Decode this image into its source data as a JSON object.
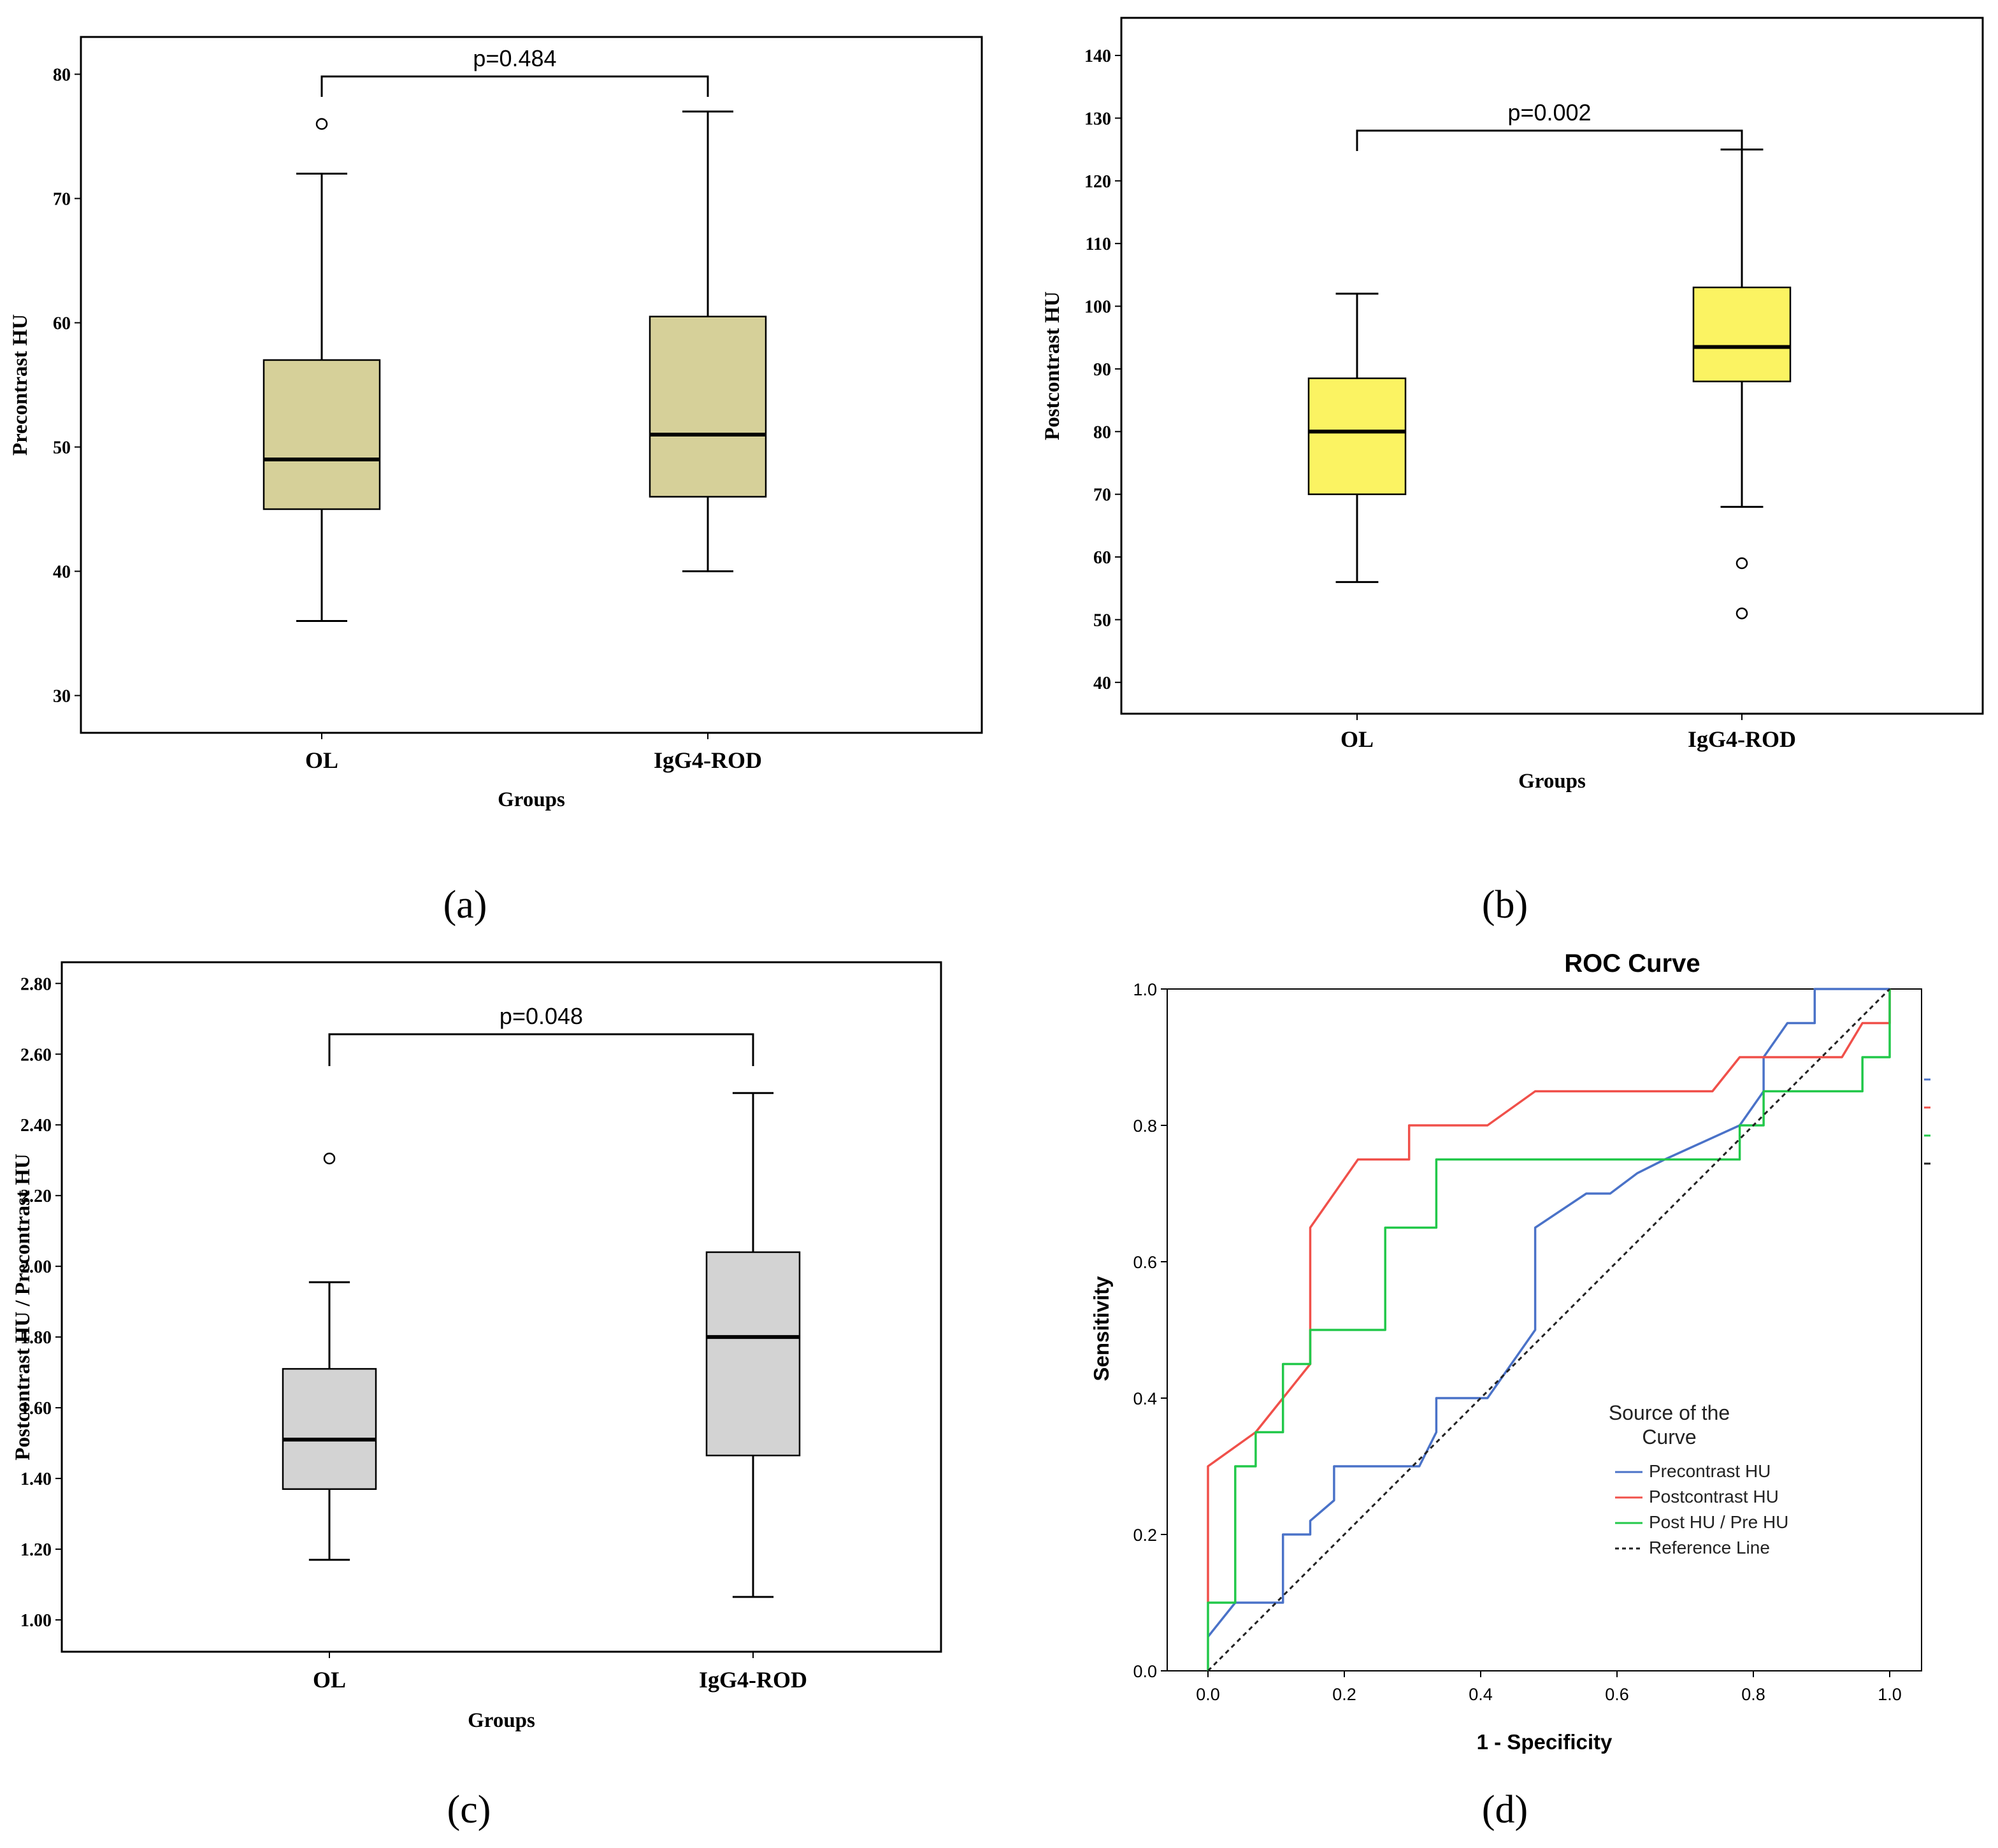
{
  "panel_labels": [
    "(a)",
    "(b)",
    "(c)",
    "(d)"
  ],
  "chart_data": [
    {
      "type": "boxplot",
      "panel": "(a)",
      "xlabel": "Groups",
      "ylabel": "Precontrast HU",
      "ylim": [
        27,
        83
      ],
      "yticks": [
        30,
        40,
        50,
        60,
        70,
        80
      ],
      "ytick_labels": [
        "30",
        "40",
        "50",
        "60",
        "70",
        "80"
      ],
      "box_color": "#d6d099",
      "annotation": "p=0.484",
      "groups": [
        {
          "name": "OL",
          "whisker_low": 36,
          "q1": 45,
          "median": 49,
          "q3": 57,
          "whisker_high": 72,
          "outliers": [
            76
          ]
        },
        {
          "name": "IgG4-ROD",
          "whisker_low": 40,
          "q1": 46,
          "median": 51,
          "q3": 60.5,
          "whisker_high": 77,
          "outliers": []
        }
      ]
    },
    {
      "type": "boxplot",
      "panel": "(b)",
      "xlabel": "Groups",
      "ylabel": "Postcontrast HU",
      "ylim": [
        35,
        146
      ],
      "yticks": [
        40,
        50,
        60,
        70,
        80,
        90,
        100,
        110,
        120,
        130,
        140
      ],
      "ytick_labels": [
        "40",
        "50",
        "60",
        "70",
        "80",
        "90",
        "100",
        "110",
        "120",
        "130",
        "140"
      ],
      "box_color": "#fbf362",
      "annotation": "p=0.002",
      "groups": [
        {
          "name": "OL",
          "whisker_low": 56,
          "q1": 70,
          "median": 80,
          "q3": 88.5,
          "whisker_high": 102,
          "outliers": []
        },
        {
          "name": "IgG4-ROD",
          "whisker_low": 68,
          "q1": 88,
          "median": 93.5,
          "q3": 103,
          "whisker_high": 125,
          "outliers": [
            59,
            51
          ]
        }
      ]
    },
    {
      "type": "boxplot",
      "panel": "(c)",
      "xlabel": "Groups",
      "ylabel": "Postcontrast HU / Precontrast  HU",
      "ylim": [
        0.91,
        2.86
      ],
      "yticks": [
        1.0,
        1.2,
        1.4,
        1.6,
        1.8,
        2.0,
        2.2,
        2.4,
        2.6,
        2.8
      ],
      "ytick_labels": [
        "1.00",
        "1.20",
        "1.40",
        "1.60",
        "1.80",
        "2.00",
        "2.20",
        "2.40",
        "2.60",
        "2.80"
      ],
      "box_color": "#d3d3d3",
      "annotation": "p=0.048",
      "groups": [
        {
          "name": "OL",
          "whisker_low": 1.17,
          "q1": 1.37,
          "median": 1.51,
          "q3": 1.71,
          "whisker_high": 1.955,
          "outliers": [
            2.305
          ]
        },
        {
          "name": "IgG4-ROD",
          "whisker_low": 1.065,
          "q1": 1.465,
          "median": 1.8,
          "q3": 2.04,
          "whisker_high": 2.49,
          "outliers": []
        }
      ]
    },
    {
      "type": "line",
      "panel": "(d)",
      "title": "ROC Curve",
      "xlabel": "1 - Specificity",
      "ylabel": "Sensitivity",
      "xlim": [
        -0.06,
        1.045
      ],
      "ylim": [
        0,
        1
      ],
      "xticks": [
        0,
        0.2,
        0.4,
        0.6,
        0.8,
        1
      ],
      "xtick_labels": [
        "0.0",
        "0.2",
        "0.4",
        "0.6",
        "0.8",
        "1.0"
      ],
      "yticks": [
        0,
        0.2,
        0.4,
        0.6,
        0.8,
        1
      ],
      "ytick_labels": [
        "0.0",
        "0.2",
        "0.4",
        "0.6",
        "0.8",
        "1.0"
      ],
      "legend": {
        "title_lines": [
          "Source of the",
          "Curve"
        ],
        "position": "bottom-right"
      },
      "series": [
        {
          "name": "Precontrast HU",
          "color": "#4a72c8",
          "dashed": false,
          "x": [
            0,
            0.04,
            0.11,
            0.11,
            0.15,
            0.15,
            0.185,
            0.185,
            0.215,
            0.28,
            0.31,
            0.335,
            0.335,
            0.41,
            0.48,
            0.48,
            0.555,
            0.59,
            0.63,
            0.67,
            0.78,
            0.815,
            0.815,
            0.85,
            0.89,
            0.89,
            1.0
          ],
          "y": [
            0.05,
            0.1,
            0.1,
            0.2,
            0.2,
            0.22,
            0.25,
            0.3,
            0.3,
            0.3,
            0.3,
            0.35,
            0.4,
            0.4,
            0.5,
            0.65,
            0.7,
            0.7,
            0.73,
            0.75,
            0.8,
            0.85,
            0.9,
            0.95,
            0.95,
            1.0,
            1.0
          ]
        },
        {
          "name": "Postcontrast HU",
          "color": "#f0504a",
          "dashed": false,
          "x": [
            0,
            0,
            0.07,
            0.11,
            0.15,
            0.15,
            0.22,
            0.295,
            0.295,
            0.33,
            0.41,
            0.48,
            0.52,
            0.63,
            0.74,
            0.78,
            0.815,
            0.93,
            0.96,
            1.0,
            1.0
          ],
          "y": [
            0.1,
            0.3,
            0.35,
            0.4,
            0.45,
            0.65,
            0.75,
            0.75,
            0.8,
            0.8,
            0.8,
            0.85,
            0.85,
            0.85,
            0.85,
            0.9,
            0.9,
            0.9,
            0.95,
            0.95,
            1.0
          ]
        },
        {
          "name": "Post HU / Pre HU",
          "color": "#22c84a",
          "dashed": false,
          "x": [
            0,
            0,
            0.04,
            0.04,
            0.07,
            0.07,
            0.11,
            0.11,
            0.15,
            0.15,
            0.26,
            0.26,
            0.335,
            0.335,
            0.78,
            0.78,
            0.815,
            0.815,
            0.96,
            0.96,
            1.0,
            1.0
          ],
          "y": [
            0,
            0.1,
            0.1,
            0.3,
            0.3,
            0.35,
            0.35,
            0.45,
            0.45,
            0.5,
            0.5,
            0.65,
            0.65,
            0.75,
            0.75,
            0.8,
            0.8,
            0.85,
            0.85,
            0.9,
            0.9,
            1.0
          ]
        },
        {
          "name": "Reference Line",
          "color": "#222222",
          "dashed": true,
          "x": [
            0,
            1
          ],
          "y": [
            0,
            1
          ]
        }
      ]
    }
  ]
}
